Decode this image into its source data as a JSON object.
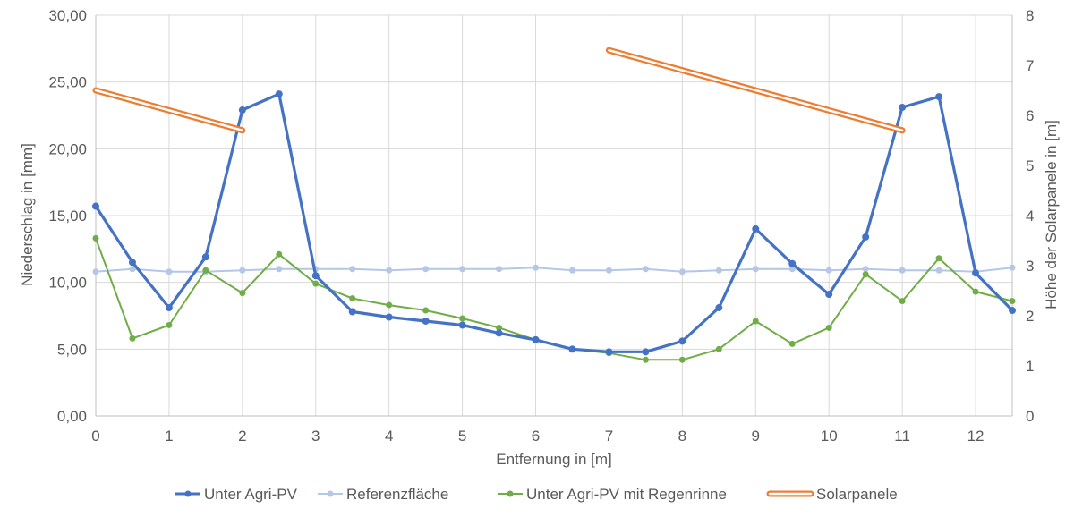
{
  "chart_data": {
    "type": "line",
    "title": "",
    "xlabel": "Entfernung in [m]",
    "ylabel": "Niederschlag in [mm]",
    "y2label": "Höhe der Solarpanele in [m]",
    "xlim": [
      0,
      12.5
    ],
    "ylim": [
      0,
      30
    ],
    "y2lim": [
      0,
      8
    ],
    "x_ticks": [
      "0",
      "1",
      "2",
      "3",
      "4",
      "5",
      "6",
      "7",
      "8",
      "9",
      "10",
      "11",
      "12"
    ],
    "y_ticks": [
      "0,00",
      "5,00",
      "10,00",
      "15,00",
      "20,00",
      "25,00",
      "30,00"
    ],
    "y2_ticks": [
      "0",
      "1",
      "2",
      "3",
      "4",
      "5",
      "6",
      "7",
      "8"
    ],
    "grid": true,
    "legend_position": "bottom",
    "series": [
      {
        "name": "Unter Agri-PV",
        "axis": "left",
        "color": "#4472C4",
        "x": [
          0,
          0.5,
          1,
          1.5,
          2,
          2.5,
          3,
          3.5,
          4,
          4.5,
          5,
          5.5,
          6,
          6.5,
          7,
          7.5,
          8,
          8.5,
          9,
          9.5,
          10,
          10.5,
          11,
          11.5,
          12,
          12.5
        ],
        "values": [
          15.7,
          11.5,
          8.1,
          11.9,
          22.9,
          24.1,
          10.5,
          7.8,
          7.4,
          7.1,
          6.8,
          6.2,
          5.7,
          5.0,
          4.8,
          4.8,
          5.6,
          8.1,
          14.0,
          11.4,
          9.1,
          13.4,
          23.1,
          23.9,
          10.7,
          7.9
        ]
      },
      {
        "name": "Referenzfläche",
        "axis": "left",
        "color": "#B4C7E7",
        "x": [
          0,
          0.5,
          1,
          1.5,
          2,
          2.5,
          3,
          3.5,
          4,
          4.5,
          5,
          5.5,
          6,
          6.5,
          7,
          7.5,
          8,
          8.5,
          9,
          9.5,
          10,
          10.5,
          11,
          11.5,
          12,
          12.5
        ],
        "values": [
          10.8,
          11.0,
          10.8,
          10.8,
          10.9,
          11.0,
          11.0,
          11.0,
          10.9,
          11.0,
          11.0,
          11.0,
          11.1,
          10.9,
          10.9,
          11.0,
          10.8,
          10.9,
          11.0,
          11.0,
          10.9,
          11.0,
          10.9,
          10.9,
          10.8,
          11.1
        ]
      },
      {
        "name": "Unter Agri-PV mit Regenrinne",
        "axis": "left",
        "color": "#70AD47",
        "x": [
          0,
          0.5,
          1,
          1.5,
          2,
          2.5,
          3,
          3.5,
          4,
          4.5,
          5,
          5.5,
          6,
          6.5,
          7,
          7.5,
          8,
          8.5,
          9,
          9.5,
          10,
          10.5,
          11,
          11.5,
          12,
          12.5
        ],
        "values": [
          13.3,
          5.8,
          6.8,
          10.9,
          9.2,
          12.1,
          9.9,
          8.8,
          8.3,
          7.9,
          7.3,
          6.6,
          5.7,
          5.0,
          4.7,
          4.2,
          4.2,
          5.0,
          7.1,
          5.4,
          6.6,
          10.6,
          8.6,
          11.8,
          9.3,
          8.6
        ]
      },
      {
        "name": "Solarpanele",
        "axis": "right",
        "color": "#ED7D31",
        "style": "double-line",
        "segments": [
          {
            "x": [
              0,
              2
            ],
            "values": [
              6.5,
              5.7
            ]
          },
          {
            "x": [
              7,
              11
            ],
            "values": [
              7.3,
              5.7
            ]
          }
        ]
      }
    ]
  }
}
